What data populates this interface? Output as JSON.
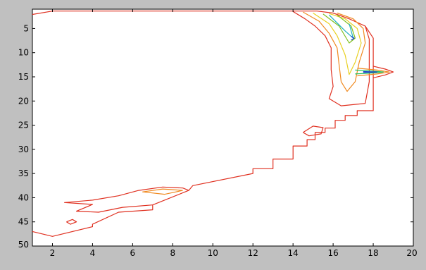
{
  "chart_data": {
    "type": "contour",
    "title": "",
    "xlabel": "",
    "ylabel": "",
    "xlim": [
      1,
      20
    ],
    "ylim": [
      50,
      1
    ],
    "y_axis_reversed": true,
    "grid": false,
    "legend": "none",
    "x_ticks": [
      2,
      4,
      6,
      8,
      10,
      12,
      14,
      16,
      18,
      20
    ],
    "y_ticks": [
      5,
      10,
      15,
      20,
      25,
      30,
      35,
      40,
      45,
      50
    ],
    "colors": {
      "background_frame": "#c0c0c0",
      "plot_area": "#ffffff",
      "axis": "#000000"
    },
    "contours": [
      {
        "name": "outer-boundary",
        "color": "#e03020",
        "points": [
          [
            1.0,
            2.1
          ],
          [
            2.0,
            1.4
          ],
          [
            15.2,
            1.4
          ],
          [
            16.0,
            1.8
          ],
          [
            16.8,
            3.0
          ],
          [
            17.6,
            4.5
          ],
          [
            18.0,
            7.0
          ],
          [
            18.0,
            14.0
          ],
          [
            18.0,
            22.0
          ],
          [
            17.2,
            22.0
          ],
          [
            17.2,
            23.0
          ],
          [
            16.6,
            23.0
          ],
          [
            16.6,
            24.0
          ],
          [
            16.1,
            24.0
          ],
          [
            16.1,
            25.6
          ],
          [
            15.6,
            25.6
          ],
          [
            15.6,
            26.5
          ],
          [
            15.1,
            26.5
          ],
          [
            15.1,
            28.0
          ],
          [
            14.7,
            28.0
          ],
          [
            14.7,
            29.3
          ],
          [
            14.0,
            29.3
          ],
          [
            14.0,
            32.0
          ],
          [
            13.0,
            32.0
          ],
          [
            13.0,
            34.0
          ],
          [
            12.0,
            34.0
          ],
          [
            12.0,
            35.0
          ],
          [
            9.0,
            37.5
          ],
          [
            8.8,
            38.5
          ],
          [
            7.0,
            41.5
          ],
          [
            7.0,
            42.5
          ],
          [
            5.3,
            43.0
          ],
          [
            4.0,
            45.5
          ],
          [
            4.0,
            46.0
          ],
          [
            2.0,
            48.0
          ],
          [
            1.0,
            47.0
          ]
        ]
      },
      {
        "name": "inner-east-edge",
        "color": "#e03020",
        "points": [
          [
            14.0,
            1.5
          ],
          [
            14.6,
            3.0
          ],
          [
            15.1,
            4.5
          ],
          [
            15.6,
            6.5
          ],
          [
            15.9,
            9.0
          ],
          [
            15.9,
            13.5
          ],
          [
            16.0,
            17.0
          ],
          [
            15.8,
            19.5
          ],
          [
            16.4,
            21.0
          ],
          [
            17.6,
            20.5
          ],
          [
            17.8,
            16.0
          ],
          [
            17.8,
            7.2
          ],
          [
            17.6,
            4.5
          ]
        ]
      },
      {
        "name": "inner-orange",
        "color": "#f08a20",
        "points": [
          [
            14.5,
            1.6
          ],
          [
            15.3,
            3.5
          ],
          [
            15.8,
            6.0
          ],
          [
            16.2,
            9.0
          ],
          [
            16.3,
            12.5
          ],
          [
            16.4,
            16.0
          ],
          [
            16.7,
            18.0
          ],
          [
            17.1,
            16.0
          ],
          [
            17.3,
            12.0
          ],
          [
            17.6,
            8.0
          ],
          [
            17.5,
            5.0
          ],
          [
            17.0,
            3.0
          ],
          [
            16.2,
            1.8
          ]
        ]
      },
      {
        "name": "inner-yellow",
        "color": "#e8d020",
        "points": [
          [
            15.0,
            1.8
          ],
          [
            15.8,
            4.0
          ],
          [
            16.2,
            6.5
          ],
          [
            16.6,
            10.5
          ],
          [
            16.8,
            14.5
          ],
          [
            17.1,
            12.0
          ],
          [
            17.4,
            8.0
          ],
          [
            17.2,
            5.0
          ],
          [
            16.6,
            3.0
          ],
          [
            15.8,
            1.9
          ]
        ]
      },
      {
        "name": "inner-green",
        "color": "#80c020",
        "points": [
          [
            15.5,
            2.0
          ],
          [
            16.3,
            4.5
          ],
          [
            16.8,
            8.0
          ],
          [
            17.1,
            7.0
          ],
          [
            16.9,
            4.5
          ],
          [
            16.2,
            2.2
          ]
        ]
      },
      {
        "name": "inner-cyan",
        "color": "#20b0c0",
        "points": [
          [
            15.8,
            2.2
          ],
          [
            16.6,
            5.5
          ],
          [
            17.0,
            7.0
          ],
          [
            16.8,
            4.0
          ]
        ]
      },
      {
        "name": "spike-outer",
        "color": "#e03020",
        "points": [
          [
            18.0,
            12.8
          ],
          [
            18.6,
            13.4
          ],
          [
            19.0,
            14.0
          ],
          [
            18.6,
            14.6
          ],
          [
            18.0,
            15.2
          ]
        ]
      },
      {
        "name": "spike-orange",
        "color": "#f08a20",
        "points": [
          [
            17.2,
            13.2
          ],
          [
            18.2,
            13.6
          ],
          [
            18.8,
            14.0
          ],
          [
            18.2,
            14.4
          ],
          [
            17.2,
            14.8
          ]
        ]
      },
      {
        "name": "spike-green",
        "color": "#20c060",
        "points": [
          [
            17.1,
            13.6
          ],
          [
            18.0,
            13.8
          ],
          [
            18.5,
            14.0
          ],
          [
            18.0,
            14.2
          ],
          [
            17.1,
            14.4
          ]
        ]
      },
      {
        "name": "spike-blue",
        "color": "#2040d0",
        "points": [
          [
            17.5,
            13.9
          ],
          [
            18.2,
            14.0
          ],
          [
            17.5,
            14.1
          ]
        ]
      },
      {
        "name": "notch-blue",
        "color": "#2040d0",
        "points": [
          [
            16.9,
            6.6
          ],
          [
            17.05,
            7.0
          ],
          [
            16.9,
            7.4
          ]
        ]
      },
      {
        "name": "island-26",
        "color": "#e03020",
        "points": [
          [
            14.5,
            26.5
          ],
          [
            15.0,
            25.2
          ],
          [
            15.5,
            25.5
          ],
          [
            15.4,
            26.8
          ],
          [
            14.8,
            27.2
          ],
          [
            14.5,
            26.5
          ]
        ]
      },
      {
        "name": "peninsula-south",
        "color": "#e03020",
        "points": [
          [
            8.8,
            38.5
          ],
          [
            8.5,
            38.0
          ],
          [
            7.5,
            37.8
          ],
          [
            6.3,
            38.5
          ],
          [
            5.3,
            39.6
          ],
          [
            4.0,
            40.5
          ],
          [
            2.6,
            41.0
          ],
          [
            4.0,
            41.4
          ],
          [
            3.2,
            42.8
          ],
          [
            4.3,
            43.0
          ],
          [
            5.5,
            42.0
          ],
          [
            7.0,
            41.5
          ]
        ]
      },
      {
        "name": "peninsula-orange",
        "color": "#f08a20",
        "points": [
          [
            8.5,
            38.5
          ],
          [
            7.5,
            38.2
          ],
          [
            6.5,
            38.8
          ],
          [
            7.6,
            39.3
          ],
          [
            8.5,
            38.5
          ]
        ]
      },
      {
        "name": "islet-45",
        "color": "#e03020",
        "points": [
          [
            2.7,
            45.0
          ],
          [
            3.0,
            44.5
          ],
          [
            3.2,
            45.0
          ],
          [
            2.9,
            45.5
          ],
          [
            2.7,
            45.0
          ]
        ]
      }
    ]
  }
}
